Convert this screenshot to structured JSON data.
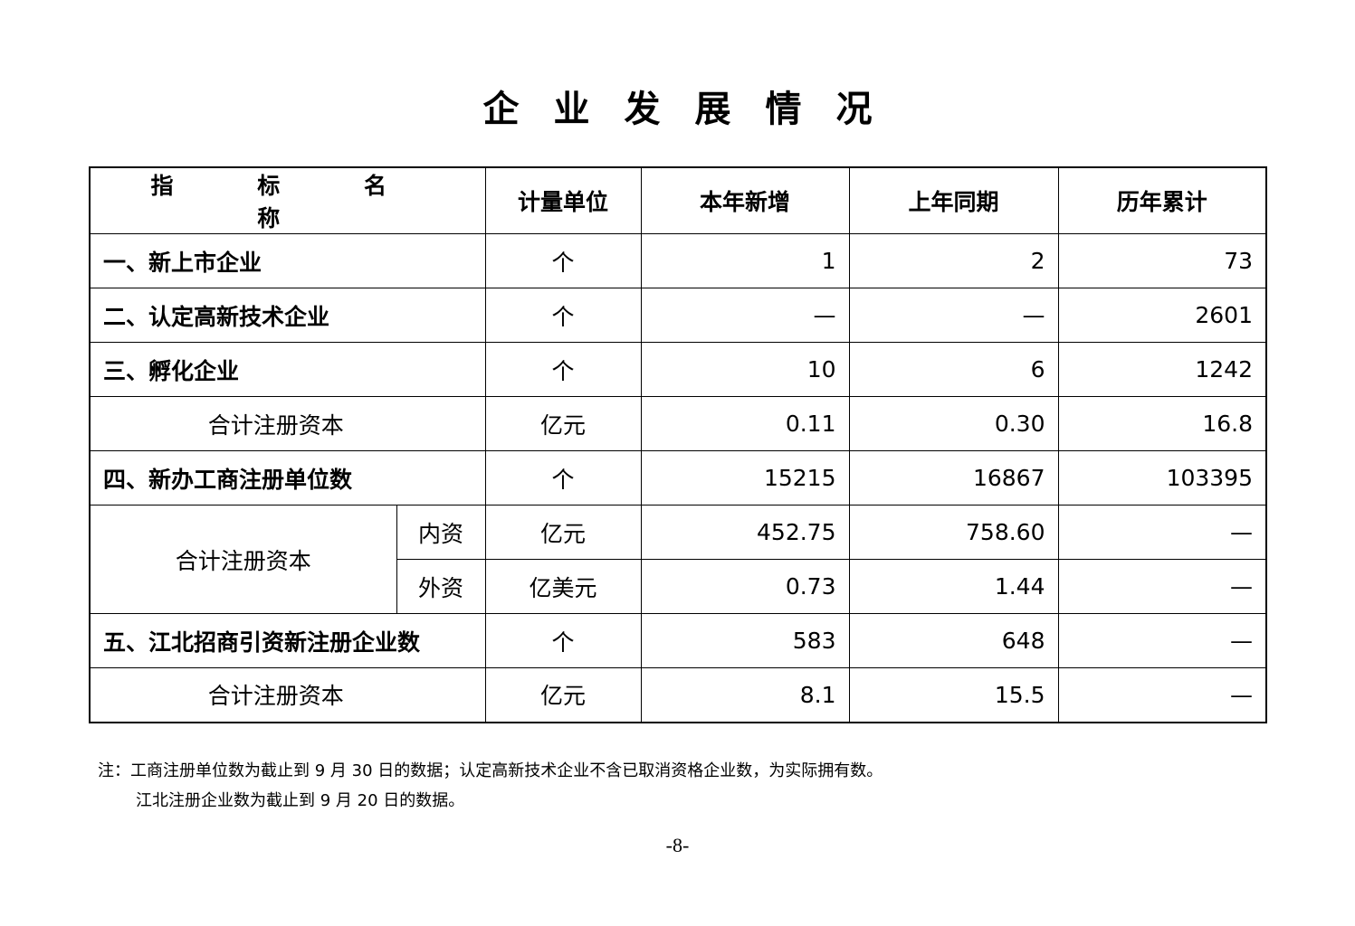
{
  "title": "企业发展情况",
  "table": {
    "headers": [
      "指 标 名 称",
      "计量单位",
      "本年新增",
      "上年同期",
      "历年累计"
    ],
    "rows": [
      {
        "name": "一、新上市企业",
        "unit": "个",
        "this_year": "1",
        "last_year": "2",
        "cumulative": "73"
      },
      {
        "name": "二、认定高新技术企业",
        "unit": "个",
        "this_year": "—",
        "last_year": "—",
        "cumulative": "2601"
      },
      {
        "name": "三、孵化企业",
        "unit": "个",
        "this_year": "10",
        "last_year": "6",
        "cumulative": "1242"
      },
      {
        "name": "合计注册资本",
        "unit": "亿元",
        "this_year": "0.11",
        "last_year": "0.30",
        "cumulative": "16.8"
      },
      {
        "name": "四、新办工商注册单位数",
        "unit": "个",
        "this_year": "15215",
        "last_year": "16867",
        "cumulative": "103395"
      },
      {
        "name": "合计注册资本",
        "sub": "内资",
        "unit": "亿元",
        "this_year": "452.75",
        "last_year": "758.60",
        "cumulative": "—"
      },
      {
        "sub": "外资",
        "unit": "亿美元",
        "this_year": "0.73",
        "last_year": "1.44",
        "cumulative": "—"
      },
      {
        "name": "五、江北招商引资新注册企业数",
        "unit": "个",
        "this_year": "583",
        "last_year": "648",
        "cumulative": "—"
      },
      {
        "name": "合计注册资本",
        "unit": "亿元",
        "this_year": "8.1",
        "last_year": "15.5",
        "cumulative": "—"
      }
    ]
  },
  "notes": [
    "注：工商注册单位数为截止到 9 月 30 日的数据；认定高新技术企业不含已取消资格企业数，为实际拥有数。",
    "江北注册企业数为截止到 9 月 20 日的数据。"
  ],
  "page_number": "-8-"
}
